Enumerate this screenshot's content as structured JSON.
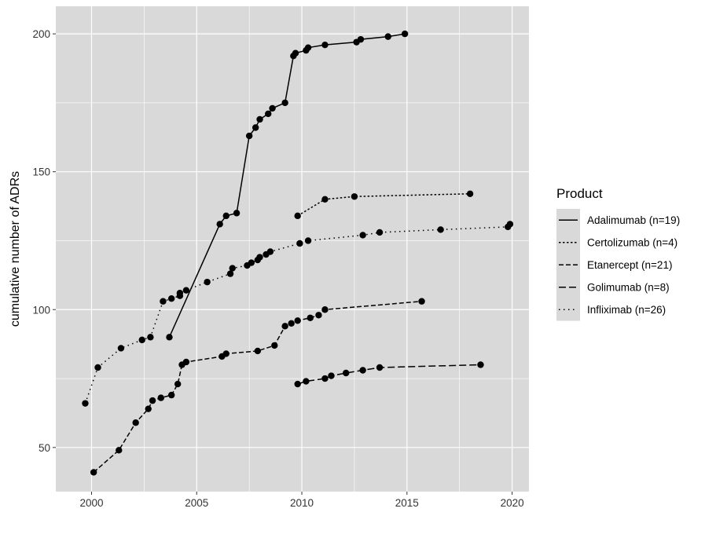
{
  "chart_data": {
    "type": "line",
    "title": "",
    "xlabel": "",
    "ylabel": "cumulative number of ADRs",
    "xlim": [
      1998.3,
      2020.8
    ],
    "ylim": [
      34,
      210
    ],
    "x_ticks": [
      2000,
      2005,
      2010,
      2015,
      2020
    ],
    "x_tick_labels": [
      "2000",
      "2005",
      "2010",
      "2015",
      "2020"
    ],
    "y_ticks": [
      50,
      100,
      150,
      200
    ],
    "y_tick_labels": [
      "50",
      "100",
      "150",
      "200"
    ],
    "grid": true,
    "panel_background": "#d9d9d9",
    "grid_color": "#ffffff",
    "line_color": "#000000",
    "legend": {
      "title": "Product",
      "position": "right"
    },
    "series": [
      {
        "name": "Adalimumab (n=19)",
        "dash": "solid",
        "points": [
          [
            2003.7,
            90
          ],
          [
            2006.1,
            131
          ],
          [
            2006.4,
            134
          ],
          [
            2006.9,
            135
          ],
          [
            2007.5,
            163
          ],
          [
            2007.8,
            166
          ],
          [
            2008.0,
            169
          ],
          [
            2008.4,
            171
          ],
          [
            2008.6,
            173
          ],
          [
            2009.2,
            175
          ],
          [
            2009.6,
            192
          ],
          [
            2009.7,
            193
          ],
          [
            2010.2,
            194
          ],
          [
            2010.3,
            195
          ],
          [
            2011.1,
            196
          ],
          [
            2012.6,
            197
          ],
          [
            2012.8,
            198
          ],
          [
            2014.1,
            199
          ],
          [
            2014.9,
            200
          ]
        ]
      },
      {
        "name": "Certolizumab (n=4)",
        "dash": "dotted-short",
        "points": [
          [
            2009.8,
            134
          ],
          [
            2011.1,
            140
          ],
          [
            2012.5,
            141
          ],
          [
            2018.0,
            142
          ]
        ]
      },
      {
        "name": "Etanercept (n=21)",
        "dash": "dashed-medium",
        "points": [
          [
            2000.1,
            41
          ],
          [
            2001.3,
            49
          ],
          [
            2002.1,
            59
          ],
          [
            2002.7,
            64
          ],
          [
            2002.9,
            67
          ],
          [
            2003.3,
            68
          ],
          [
            2003.8,
            69
          ],
          [
            2004.1,
            73
          ],
          [
            2004.3,
            80
          ],
          [
            2004.5,
            81
          ],
          [
            2006.2,
            83
          ],
          [
            2006.4,
            84
          ],
          [
            2007.9,
            85
          ],
          [
            2008.7,
            87
          ],
          [
            2009.2,
            94
          ],
          [
            2009.5,
            95
          ],
          [
            2009.8,
            96
          ],
          [
            2010.4,
            97
          ],
          [
            2010.8,
            98
          ],
          [
            2011.1,
            100
          ],
          [
            2015.7,
            103
          ]
        ]
      },
      {
        "name": "Golimumab (n=8)",
        "dash": "dashed-long",
        "points": [
          [
            2009.8,
            73
          ],
          [
            2010.2,
            74
          ],
          [
            2011.1,
            75
          ],
          [
            2011.4,
            76
          ],
          [
            2012.1,
            77
          ],
          [
            2012.9,
            78
          ],
          [
            2013.7,
            79
          ],
          [
            2018.5,
            80
          ]
        ]
      },
      {
        "name": "Infliximab (n=26)",
        "dash": "dotted-sparse",
        "points": [
          [
            1999.7,
            66
          ],
          [
            2000.3,
            79
          ],
          [
            2001.4,
            86
          ],
          [
            2002.4,
            89
          ],
          [
            2002.8,
            90
          ],
          [
            2003.4,
            103
          ],
          [
            2003.8,
            104
          ],
          [
            2004.2,
            105
          ],
          [
            2004.2,
            106
          ],
          [
            2004.5,
            107
          ],
          [
            2005.5,
            110
          ],
          [
            2006.6,
            113
          ],
          [
            2006.7,
            115
          ],
          [
            2007.4,
            116
          ],
          [
            2007.6,
            117
          ],
          [
            2007.9,
            118
          ],
          [
            2008.0,
            119
          ],
          [
            2008.3,
            120
          ],
          [
            2008.5,
            121
          ],
          [
            2009.9,
            124
          ],
          [
            2010.3,
            125
          ],
          [
            2012.9,
            127
          ],
          [
            2013.7,
            128
          ],
          [
            2016.6,
            129
          ],
          [
            2019.8,
            130
          ],
          [
            2019.9,
            131
          ]
        ]
      }
    ]
  }
}
